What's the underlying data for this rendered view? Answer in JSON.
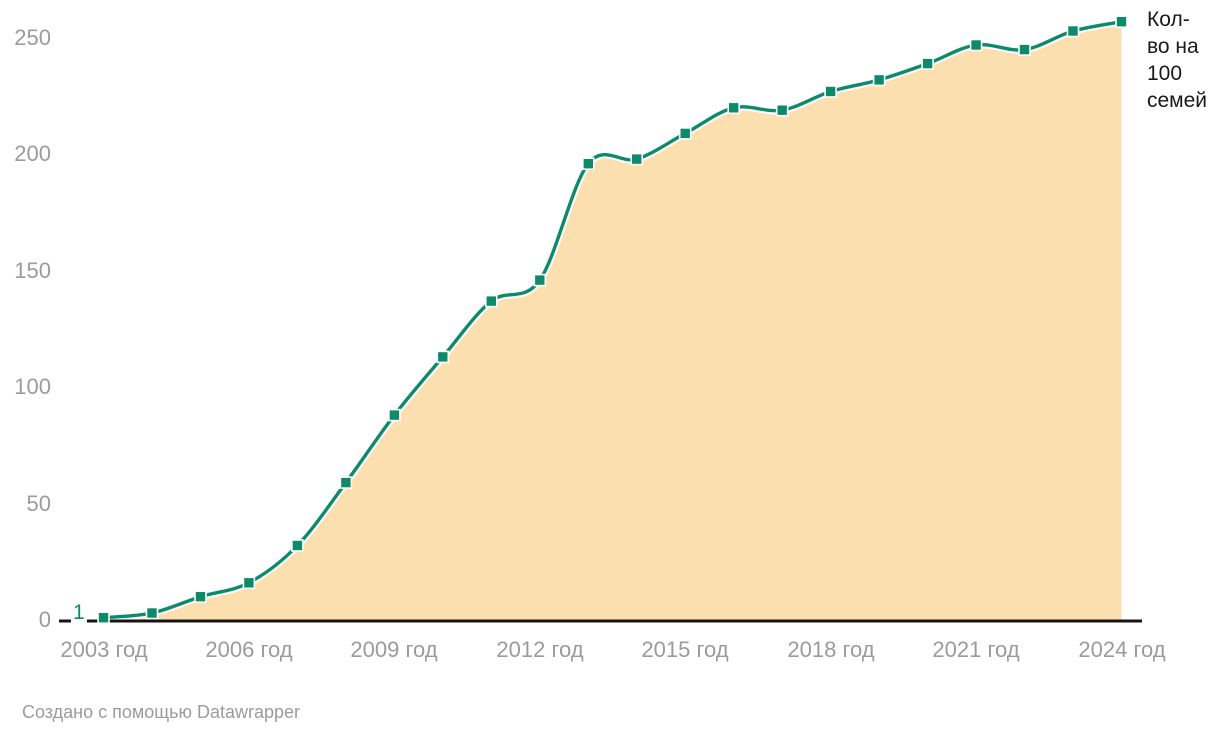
{
  "chart_data": {
    "type": "area",
    "title": "",
    "xlabel": "",
    "ylabel": "",
    "x": [
      2003,
      2004,
      2005,
      2006,
      2007,
      2008,
      2009,
      2010,
      2011,
      2012,
      2013,
      2014,
      2015,
      2016,
      2017,
      2018,
      2019,
      2020,
      2021,
      2022,
      2023,
      2024
    ],
    "values": [
      1,
      3,
      10,
      16,
      32,
      59,
      88,
      113,
      137,
      146,
      196,
      198,
      209,
      220,
      219,
      227,
      232,
      239,
      247,
      245,
      253,
      257
    ],
    "series_label": "Кол-во на 100 семей",
    "point_label": {
      "x": 2003,
      "text": "1"
    },
    "x_tick_years": [
      2003,
      2006,
      2009,
      2012,
      2015,
      2018,
      2021,
      2024
    ],
    "x_tick_labels": [
      "2003 год",
      "2006 год",
      "2009 год",
      "2012 год",
      "2015 год",
      "2018 год",
      "2021 год",
      "2024 год"
    ],
    "y_ticks": [
      0,
      50,
      100,
      150,
      200,
      250
    ],
    "xlim": [
      2003,
      2024
    ],
    "ylim": [
      0,
      260
    ],
    "grid": false,
    "legend_position": "top-right",
    "marker": "square",
    "colors": {
      "line": "#0d8a6a",
      "area": "#fbdfae",
      "axis": "#141414",
      "tick_labels": "#9b9b9b",
      "point_label": "#0d8a6a",
      "legend_text": "#1a1a1a",
      "footer_text": "#9b9b9b"
    }
  },
  "footer": {
    "attribution": "Создано с помощью Datawrapper"
  }
}
